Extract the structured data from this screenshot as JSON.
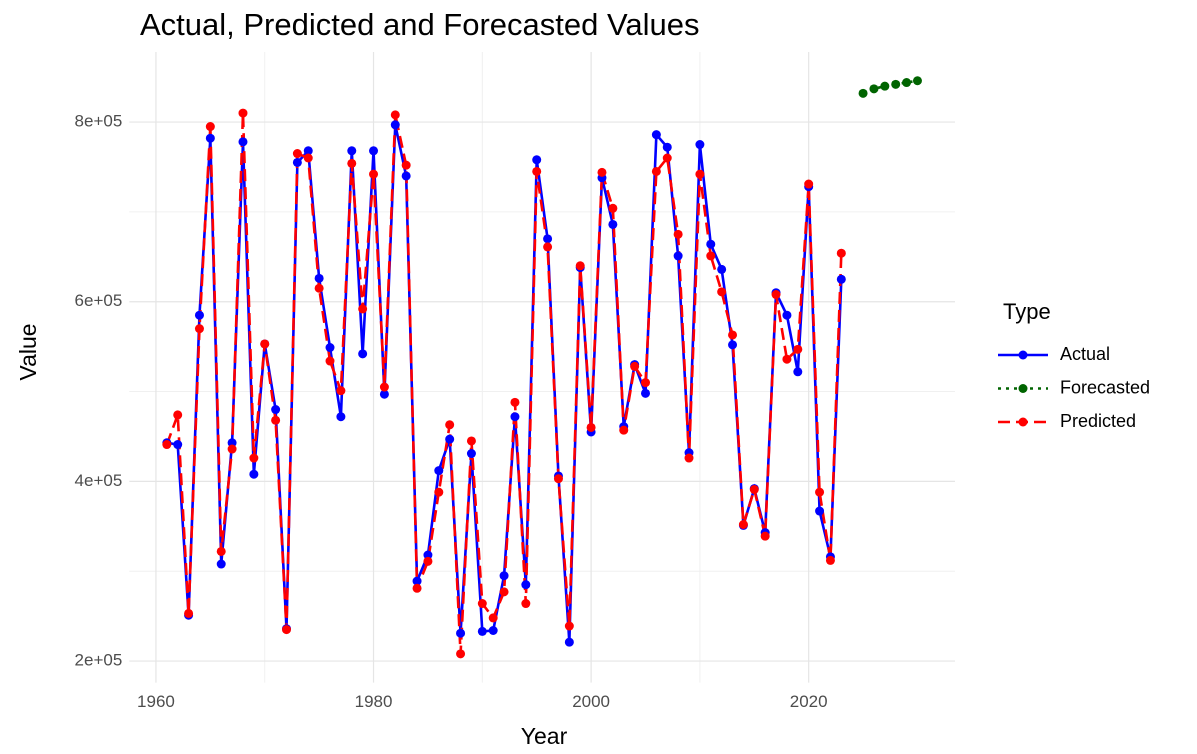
{
  "chart_data": {
    "type": "line",
    "title": "Actual, Predicted and Forecasted Values",
    "x_label": "Year",
    "y_label": "Value",
    "legend_title": "Type",
    "legend_position": "right",
    "grid": true,
    "xlim": [
      1957.55,
      2033.45
    ],
    "xticks": [
      1960,
      1980,
      2000,
      2020
    ],
    "ylim": [
      176000,
      878000
    ],
    "yticks": [
      {
        "value": 200000,
        "label": "2e+05"
      },
      {
        "value": 400000,
        "label": "4e+05"
      },
      {
        "value": 600000,
        "label": "6e+05"
      },
      {
        "value": 800000,
        "label": "8e+05"
      }
    ],
    "series": [
      {
        "name": "Actual",
        "color": "#0000ff",
        "linetype": "solid",
        "x": [
          1961,
          1962,
          1963,
          1964,
          1965,
          1966,
          1967,
          1968,
          1969,
          1970,
          1971,
          1972,
          1973,
          1974,
          1975,
          1976,
          1977,
          1978,
          1979,
          1980,
          1981,
          1982,
          1983,
          1984,
          1985,
          1986,
          1987,
          1988,
          1989,
          1990,
          1991,
          1992,
          1993,
          1994,
          1995,
          1996,
          1997,
          1998,
          1999,
          2000,
          2001,
          2002,
          2003,
          2004,
          2005,
          2006,
          2007,
          2008,
          2009,
          2010,
          2011,
          2012,
          2013,
          2014,
          2015,
          2016,
          2017,
          2018,
          2019,
          2020,
          2021,
          2022,
          2023
        ],
        "values": [
          443000,
          441000,
          251000,
          585000,
          782000,
          308000,
          443000,
          778000,
          408000,
          553000,
          480000,
          236000,
          755000,
          768000,
          626000,
          549000,
          472000,
          768000,
          542000,
          768000,
          497000,
          797000,
          740000,
          289000,
          318000,
          412000,
          447000,
          231000,
          431000,
          233000,
          234000,
          295000,
          472000,
          285000,
          758000,
          670000,
          406000,
          221000,
          638000,
          455000,
          738000,
          686000,
          461000,
          530000,
          498000,
          786000,
          772000,
          651000,
          432000,
          775000,
          664000,
          636000,
          552000,
          351000,
          392000,
          343000,
          610000,
          585000,
          522000,
          728000,
          367000,
          316000,
          625000
        ]
      },
      {
        "name": "Forecasted",
        "color": "#006400",
        "linetype": "dotted",
        "x": [
          2025,
          2026,
          2027,
          2028,
          2029,
          2030
        ],
        "values": [
          832000,
          837000,
          840000,
          842000,
          844000,
          846000
        ]
      },
      {
        "name": "Predicted",
        "color": "#ff0000",
        "linetype": "dashed",
        "x": [
          1961,
          1962,
          1963,
          1964,
          1965,
          1966,
          1967,
          1968,
          1969,
          1970,
          1971,
          1972,
          1973,
          1974,
          1975,
          1976,
          1977,
          1978,
          1979,
          1980,
          1981,
          1982,
          1983,
          1984,
          1985,
          1986,
          1987,
          1988,
          1989,
          1990,
          1991,
          1992,
          1993,
          1994,
          1995,
          1996,
          1997,
          1998,
          1999,
          2000,
          2001,
          2002,
          2003,
          2004,
          2005,
          2006,
          2007,
          2008,
          2009,
          2010,
          2011,
          2012,
          2013,
          2014,
          2015,
          2016,
          2017,
          2018,
          2019,
          2020,
          2021,
          2022,
          2023
        ],
        "values": [
          441000,
          474000,
          253000,
          570000,
          795000,
          322000,
          436000,
          810000,
          426000,
          553000,
          468000,
          235000,
          765000,
          760000,
          615000,
          534000,
          501000,
          754000,
          592000,
          742000,
          505000,
          808000,
          752000,
          281000,
          311000,
          388000,
          463000,
          208000,
          445000,
          264000,
          248000,
          277000,
          488000,
          264000,
          745000,
          661000,
          403000,
          239000,
          640000,
          460000,
          744000,
          704000,
          457000,
          528000,
          510000,
          745000,
          760000,
          675000,
          426000,
          742000,
          651000,
          611000,
          563000,
          352000,
          391000,
          339000,
          608000,
          536000,
          547000,
          731000,
          388000,
          312000,
          654000
        ]
      }
    ]
  }
}
